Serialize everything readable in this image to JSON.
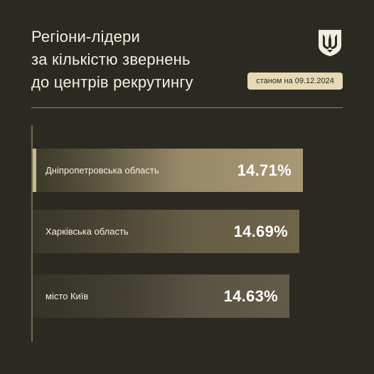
{
  "header": {
    "title_lines": [
      "Регіони-лідери",
      "за кількістю звернень",
      "до центрів рекрутингу"
    ],
    "date_label": "станом на 09.12.2024",
    "emblem_icon": "trident-emblem-icon"
  },
  "colors": {
    "background": "#2b2a22",
    "badge": "#e6d9b4",
    "bar_highlight": "#a89875"
  },
  "chart_data": {
    "type": "bar",
    "orientation": "horizontal",
    "categories": [
      "Дніпропетровська область",
      "Харківська область",
      "місто Київ"
    ],
    "values": [
      14.71,
      14.69,
      14.63
    ],
    "value_labels": [
      "14.71%",
      "14.69%",
      "14.63%"
    ],
    "title": "Регіони-лідери за кількістю звернень до центрів рекрутингу",
    "xlabel": "",
    "ylabel": "",
    "grid": false
  }
}
